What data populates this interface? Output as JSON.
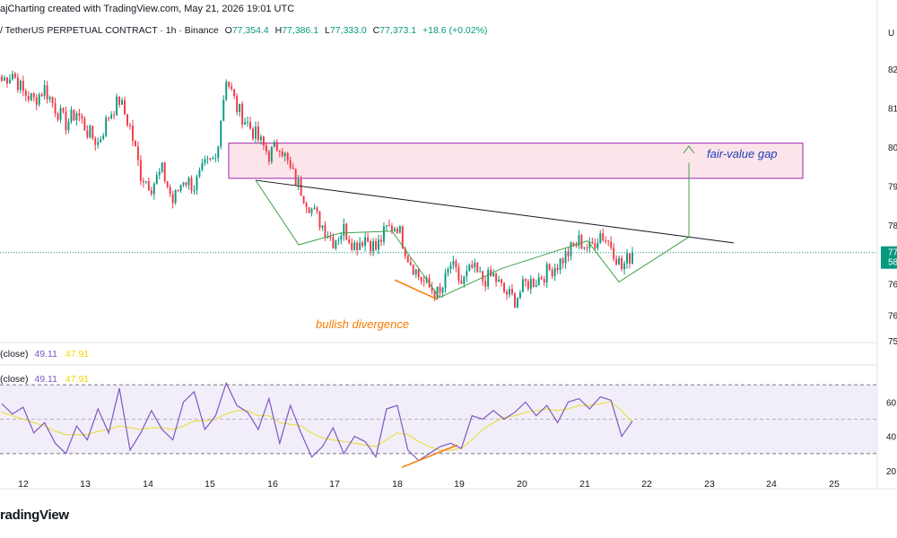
{
  "header": {
    "title": "ajCharting created with TradingView.com, May 21, 2026 19:01 UTC"
  },
  "symbol": {
    "name": "/ TetherUS PERPETUAL CONTRACT · 1h · Binance",
    "open_label": "O",
    "open": "77,354.4",
    "high_label": "H",
    "high": "77,386.1",
    "low_label": "L",
    "low": "77,333.0",
    "close_label": "C",
    "close": "77,373.1",
    "change": "+18.6 (+0.02%)"
  },
  "price_axis": {
    "labels": [
      "82",
      "81",
      "80",
      "79",
      "78",
      "77",
      "76",
      "76",
      "75"
    ],
    "current_label_1": "77",
    "current_label_2": "58",
    "corner": "U"
  },
  "rsi": {
    "title_1": "(close)",
    "value_1": "49.11",
    "ma_1": "47.91",
    "title_2": "(close)",
    "value_2": "49.11",
    "ma_2": "47.91",
    "axis_labels": [
      "60",
      "40",
      "20"
    ]
  },
  "time_axis": {
    "labels": [
      "12",
      "13",
      "14",
      "15",
      "16",
      "17",
      "18",
      "19",
      "20",
      "21",
      "22",
      "23",
      "24",
      "25"
    ]
  },
  "annotations": {
    "fvg": "fair-value gap",
    "divergence": "bullish divergence"
  },
  "logo": "radingView",
  "colors": {
    "up": "#089981",
    "down": "#f23645",
    "rsi": "#7e57c2",
    "rsi_ma": "#e8e04a",
    "pattern": "#43a047",
    "divergence": "#f57c00",
    "fvg_border": "#9c27b0",
    "fvg_fill": "#fde4ea",
    "annotation_blue": "#1e3fb8",
    "current_price": "#089981"
  },
  "chart_data": {
    "type": "candlestick",
    "timeframe": "1h",
    "x_ticks": [
      "12",
      "13",
      "14",
      "15",
      "16",
      "17",
      "18",
      "19",
      "20",
      "21",
      "22",
      "23",
      "24",
      "25"
    ],
    "close_path": [
      81.7,
      81.9,
      81.4,
      81.2,
      81.5,
      81.0,
      80.6,
      80.9,
      80.4,
      80.1,
      80.8,
      81.2,
      80.5,
      79.3,
      79.0,
      79.4,
      78.6,
      79.2,
      79.0,
      79.5,
      79.7,
      81.8,
      81.0,
      80.6,
      80.2,
      79.8,
      80.1,
      79.4,
      78.9,
      78.4,
      78.0,
      77.6,
      77.9,
      77.5,
      77.7,
      77.4,
      77.9,
      78.0,
      77.2,
      76.7,
      76.4,
      76.2,
      77.0,
      76.5,
      76.9,
      76.6,
      76.7,
      76.3,
      76.1,
      76.5,
      76.6,
      76.8,
      77.0,
      77.3,
      77.6,
      77.4,
      77.8,
      77.5,
      76.9,
      77.3
    ],
    "price_range": [
      75.0,
      82.5
    ],
    "fair_value_gap": [
      79.2,
      80.1
    ],
    "rsi": {
      "range": [
        20,
        80
      ],
      "bands": [
        30,
        70
      ],
      "midline": 50,
      "values": [
        59,
        53,
        57,
        42,
        48,
        36,
        30,
        46,
        38,
        56,
        42,
        68,
        32,
        42,
        55,
        44,
        38,
        60,
        66,
        44,
        52,
        71,
        58,
        54,
        44,
        62,
        36,
        58,
        42,
        28,
        34,
        45,
        30,
        40,
        37,
        28,
        56,
        58,
        32,
        26,
        30,
        34,
        36,
        33,
        52,
        50,
        55,
        50,
        54,
        60,
        52,
        58,
        48,
        60,
        62,
        56,
        63,
        61,
        40,
        49
      ],
      "ma_values": [
        54,
        52,
        50,
        48,
        46,
        43,
        41,
        41,
        41,
        43,
        44,
        46,
        45,
        44,
        45,
        45,
        44,
        46,
        49,
        49,
        50,
        53,
        55,
        55,
        52,
        52,
        48,
        47,
        46,
        42,
        39,
        38,
        37,
        36,
        35,
        34,
        38,
        42,
        41,
        37,
        34,
        32,
        32,
        33,
        38,
        44,
        48,
        51,
        52,
        54,
        55,
        56,
        55,
        56,
        58,
        58,
        59,
        60,
        55,
        48
      ]
    },
    "current": {
      "close": 77373.1,
      "rsi": 49.11,
      "rsi_ma": 47.91
    }
  }
}
